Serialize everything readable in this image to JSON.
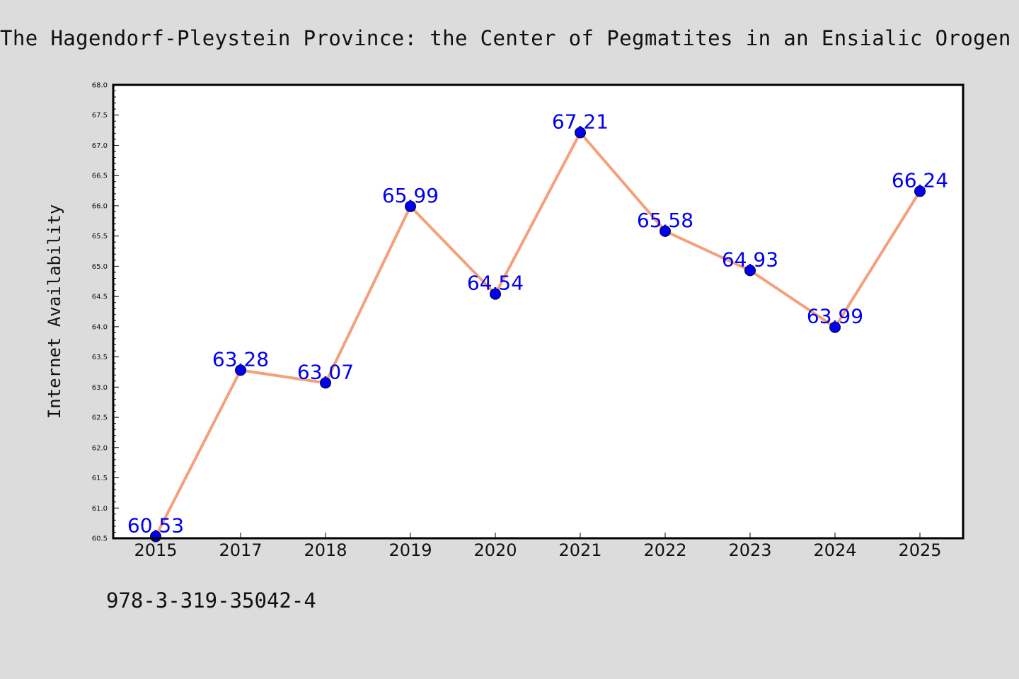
{
  "title": "The Hagendorf-Pleystein Province: the Center of Pegmatites in an Ensialic Orogen",
  "footnote": "978-3-319-35042-4",
  "colors": {
    "background": "#dcdcdc",
    "plot_area": "#ffffff",
    "line": "#f4a07c",
    "marker": "#0000ee",
    "data_label": "#0000ee",
    "axis": "#000000"
  },
  "chart_data": {
    "type": "line",
    "title": "The Hagendorf-Pleystein Province: the Center of Pegmatites in an Ensialic Orogen",
    "xlabel": "",
    "ylabel": "Internet Availability",
    "categories": [
      "2015",
      "2017",
      "2018",
      "2019",
      "2020",
      "2021",
      "2022",
      "2023",
      "2024",
      "2025"
    ],
    "series": [
      {
        "values": [
          60.53,
          63.28,
          63.07,
          65.99,
          64.54,
          67.21,
          65.58,
          64.93,
          63.99,
          66.24
        ],
        "data_labels": [
          "60.53",
          "63.28",
          "63.07",
          "65.99",
          "64.54",
          "67.21",
          "65.58",
          "64.93",
          "63.99",
          "66.24"
        ]
      }
    ],
    "ylim": [
      60.5,
      68.0
    ],
    "yticks": [
      "60.5",
      "61.0",
      "61.5",
      "62.0",
      "62.5",
      "63.0",
      "63.5",
      "64.0",
      "64.5",
      "65.0",
      "65.5",
      "66.0",
      "66.5",
      "67.0",
      "67.5",
      "68.0"
    ],
    "ytick_values": [
      60.5,
      61.0,
      61.5,
      62.0,
      62.5,
      63.0,
      63.5,
      64.0,
      64.5,
      65.0,
      65.5,
      66.0,
      66.5,
      67.0,
      67.5,
      68.0
    ],
    "grid": false,
    "legend": "none"
  }
}
